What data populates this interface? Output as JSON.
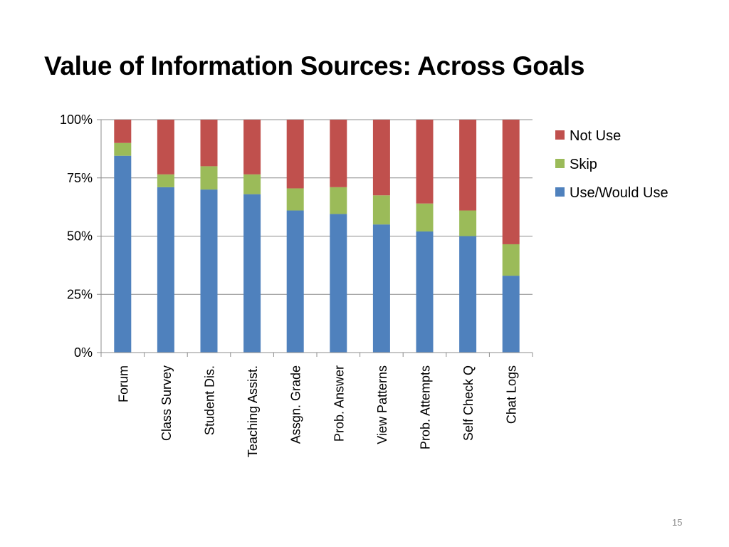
{
  "slide": {
    "title": "Value of Information Sources: Across Goals",
    "page_number": "15"
  },
  "chart_data": {
    "type": "bar",
    "stacked": true,
    "percent": true,
    "categories": [
      "Forum",
      "Class Survey",
      "Student Dis.",
      "Teaching Assist.",
      "Assgn. Grade",
      "Prob. Answer",
      "View Patterns",
      "Prob. Attempts",
      "Self Check Q",
      "Chat Logs"
    ],
    "series": [
      {
        "name": "Use/Would Use",
        "color": "#4F81BD",
        "values": [
          84.5,
          71,
          70,
          68,
          61,
          59.5,
          55,
          52,
          50,
          33
        ]
      },
      {
        "name": "Skip",
        "color": "#9BBB59",
        "values": [
          5.5,
          5.5,
          10,
          8.5,
          9.5,
          11.5,
          12.5,
          12,
          11,
          13.5
        ]
      },
      {
        "name": "Not Use",
        "color": "#C0504D",
        "values": [
          10,
          23.5,
          20,
          23.5,
          29.5,
          29,
          32.5,
          36,
          39,
          53.5
        ]
      }
    ],
    "ylim": [
      0,
      100
    ],
    "yticks": [
      0,
      25,
      50,
      75,
      100
    ],
    "ytick_labels": [
      "0%",
      "25%",
      "50%",
      "75%",
      "100%"
    ],
    "grid": true,
    "legend": {
      "position": "right",
      "entries": [
        "Not Use",
        "Skip",
        "Use/Would Use"
      ]
    },
    "title": "",
    "xlabel": "",
    "ylabel": ""
  }
}
